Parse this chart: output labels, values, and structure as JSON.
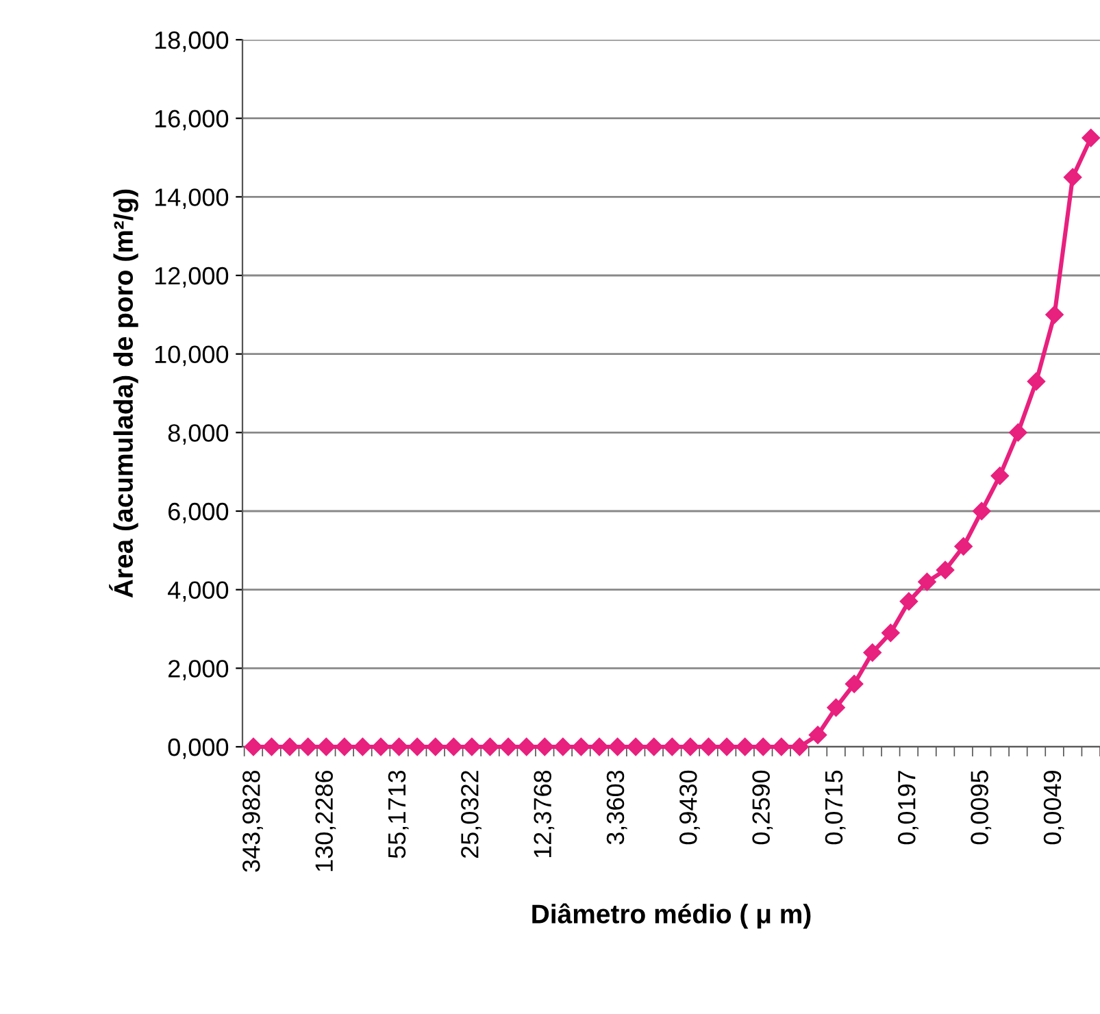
{
  "chart_data": {
    "type": "line",
    "xlabel": "Diâmetro médio ( μ m)",
    "ylabel": "Área (acumulada) de poro (m²/g)",
    "categories": [
      "343,9828",
      null,
      null,
      null,
      "130,2286",
      null,
      null,
      null,
      "55,1713",
      null,
      null,
      null,
      "25,0322",
      null,
      null,
      null,
      "12,3768",
      null,
      null,
      null,
      "3,3603",
      null,
      null,
      null,
      "0,9430",
      null,
      null,
      null,
      "0,2590",
      null,
      null,
      null,
      "0,0715",
      null,
      null,
      null,
      "0,0197",
      null,
      null,
      null,
      "0,0095",
      null,
      null,
      null,
      "0,0049",
      null,
      null
    ],
    "series": [
      {
        "color": "#e8207e",
        "values": [
          0,
          0,
          0,
          0,
          0,
          0,
          0,
          0,
          0,
          0,
          0,
          0,
          0,
          0,
          0,
          0,
          0,
          0,
          0,
          0,
          0,
          0,
          0,
          0,
          0,
          0,
          0,
          0,
          0,
          0,
          0,
          0.3,
          1.0,
          1.6,
          2.4,
          2.9,
          3.7,
          4.2,
          4.5,
          5.1,
          6.0,
          6.9,
          8.0,
          9.3,
          11.0,
          14.5,
          15.5
        ]
      }
    ],
    "ylim": [
      0,
      18
    ],
    "yticks": [
      {
        "value": 0,
        "label": "0,000"
      },
      {
        "value": 2,
        "label": "2,000"
      },
      {
        "value": 4,
        "label": "4,000"
      },
      {
        "value": 6,
        "label": "6,000"
      },
      {
        "value": 8,
        "label": "8,000"
      },
      {
        "value": 10,
        "label": "10,000"
      },
      {
        "value": 12,
        "label": "12,000"
      },
      {
        "value": 14,
        "label": "14,000"
      },
      {
        "value": 16,
        "label": "16,000"
      },
      {
        "value": 18,
        "label": "18,000"
      }
    ],
    "grid": "y",
    "marker": "diamond",
    "line_style": "solid"
  }
}
